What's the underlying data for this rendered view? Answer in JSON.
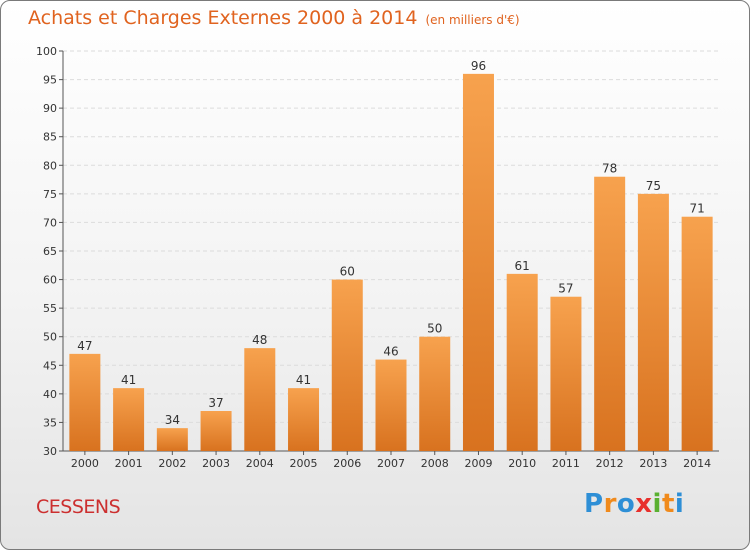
{
  "chart_data": {
    "type": "bar",
    "title": "Achats et Charges Externes 2000 à 2014",
    "subtitle": "(en milliers d'€)",
    "categories": [
      "2000",
      "2001",
      "2002",
      "2003",
      "2004",
      "2005",
      "2006",
      "2007",
      "2008",
      "2009",
      "2010",
      "2011",
      "2012",
      "2013",
      "2014"
    ],
    "values": [
      47,
      41,
      34,
      37,
      48,
      41,
      60,
      46,
      50,
      96,
      61,
      57,
      78,
      75,
      71
    ],
    "ylim": [
      30,
      100
    ],
    "yticks": [
      30,
      35,
      40,
      45,
      50,
      55,
      60,
      65,
      70,
      75,
      80,
      85,
      90,
      95,
      100
    ],
    "grid": true,
    "bar_color_top": "#f7a24e",
    "bar_color_bottom": "#d8721f"
  },
  "footer": {
    "town": "CESSENS",
    "logo_letters": [
      "P",
      "r",
      "o",
      "x",
      "i",
      "t",
      "i"
    ],
    "logo_colors": [
      "#2e8fd6",
      "#f08a1c",
      "#2e8fd6",
      "#e8302c",
      "#5ab031",
      "#f08a1c",
      "#2e8fd6"
    ]
  }
}
